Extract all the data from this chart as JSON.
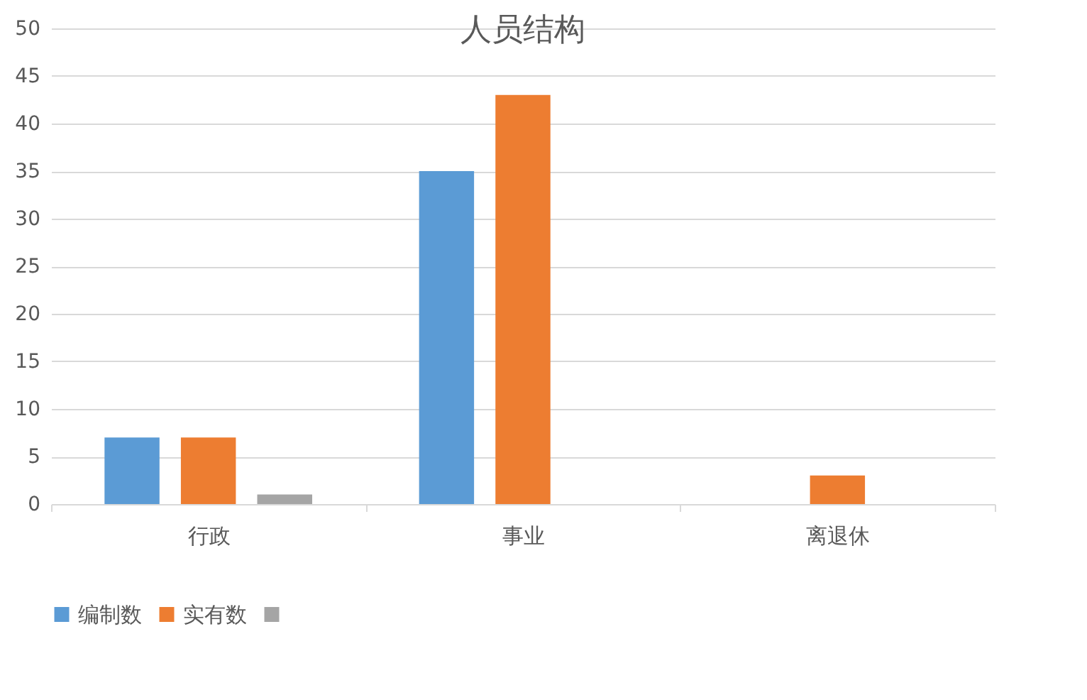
{
  "chart_data": {
    "type": "bar",
    "title": "人员结构",
    "categories": [
      "行政",
      "事业",
      "离退休"
    ],
    "series": [
      {
        "name": "编制数",
        "color": "#5b9bd5",
        "values": [
          7,
          35,
          null
        ]
      },
      {
        "name": "实有数",
        "color": "#ed7d31",
        "values": [
          7,
          43,
          3
        ]
      },
      {
        "color": "#a5a5a5",
        "values": [
          1,
          null,
          null
        ]
      }
    ],
    "ylim": [
      0,
      50
    ],
    "yticks": [
      0,
      5,
      10,
      15,
      20,
      25,
      30,
      35,
      40,
      45,
      50
    ],
    "grid": "y",
    "legend": "bottom"
  }
}
